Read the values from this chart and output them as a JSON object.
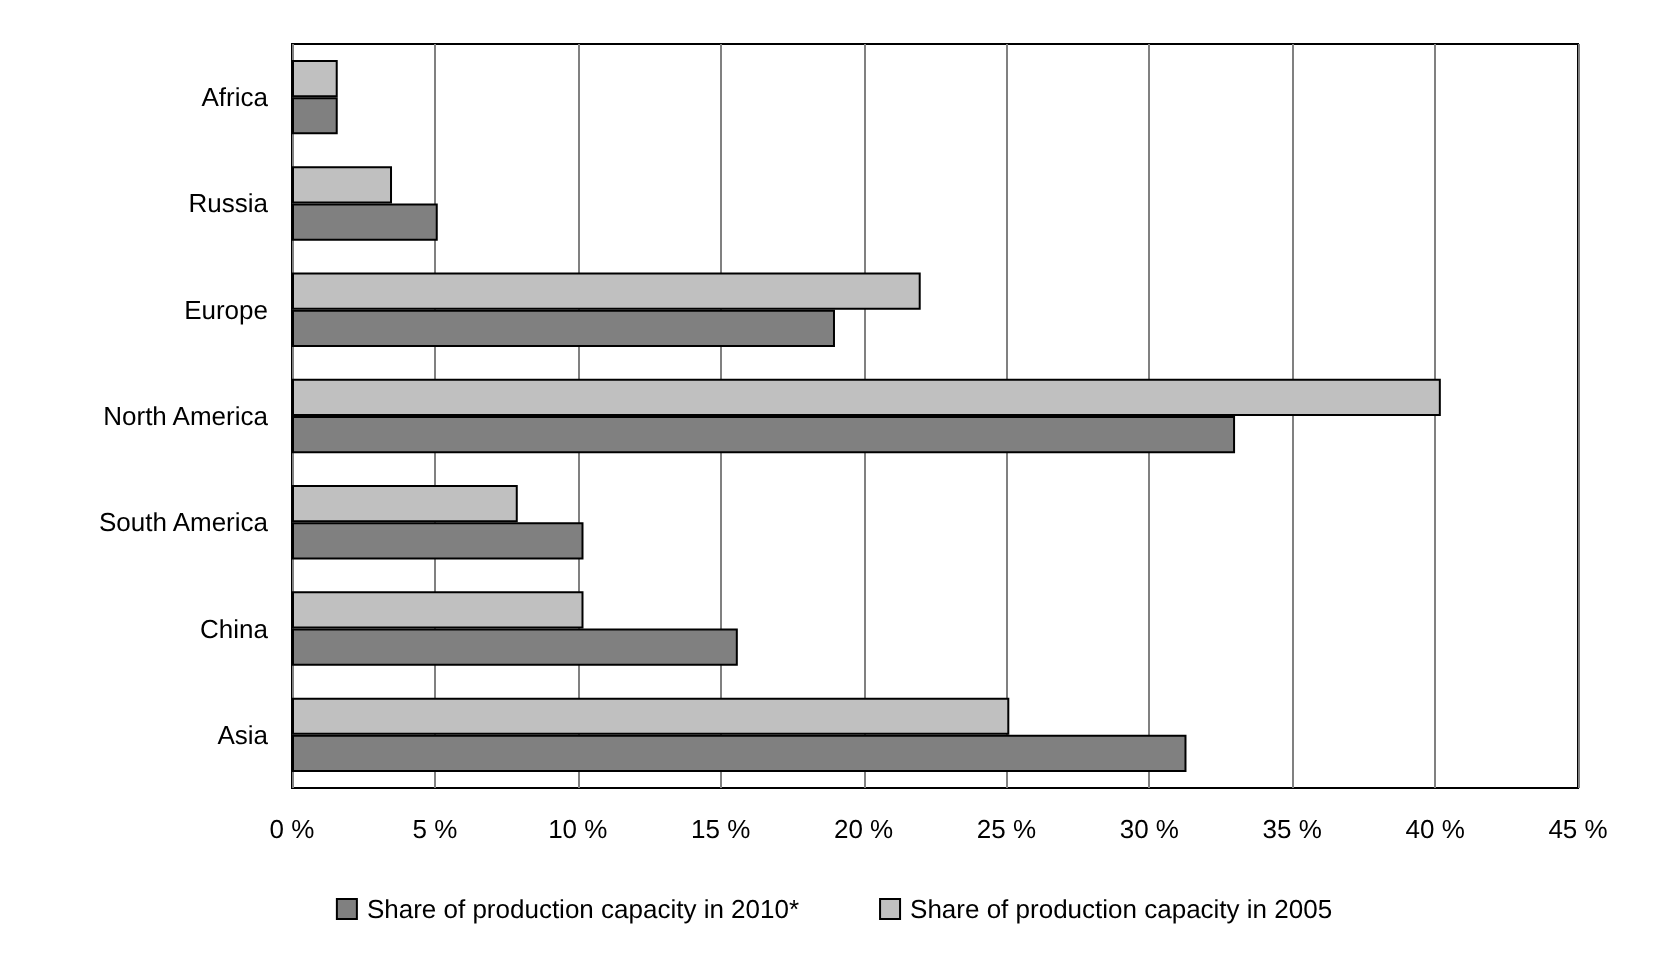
{
  "chart_data": {
    "type": "bar",
    "orientation": "horizontal",
    "categories": [
      "Africa",
      "Russia",
      "Europe",
      "North America",
      "South America",
      "China",
      "Asia"
    ],
    "series": [
      {
        "name": "Share of production capacity in 2010*",
        "color": "#808080",
        "values": [
          1.6,
          5.1,
          19.0,
          33.0,
          10.2,
          15.6,
          31.3
        ]
      },
      {
        "name": "Share of production capacity in 2005",
        "color": "#c0c0c0",
        "values": [
          1.6,
          3.5,
          22.0,
          40.2,
          7.9,
          10.2,
          25.1
        ]
      }
    ],
    "xlim": [
      0,
      45
    ],
    "xticks": [
      {
        "value": 0,
        "label": "0 %"
      },
      {
        "value": 5,
        "label": "5 %"
      },
      {
        "value": 10,
        "label": "10 %"
      },
      {
        "value": 15,
        "label": "15 %"
      },
      {
        "value": 20,
        "label": "20 %"
      },
      {
        "value": 25,
        "label": "25 %"
      },
      {
        "value": 30,
        "label": "30 %"
      },
      {
        "value": 35,
        "label": "35 %"
      },
      {
        "value": 40,
        "label": "40 %"
      },
      {
        "value": 45,
        "label": "45 %"
      }
    ],
    "grid": "x",
    "legend": "bottom"
  }
}
